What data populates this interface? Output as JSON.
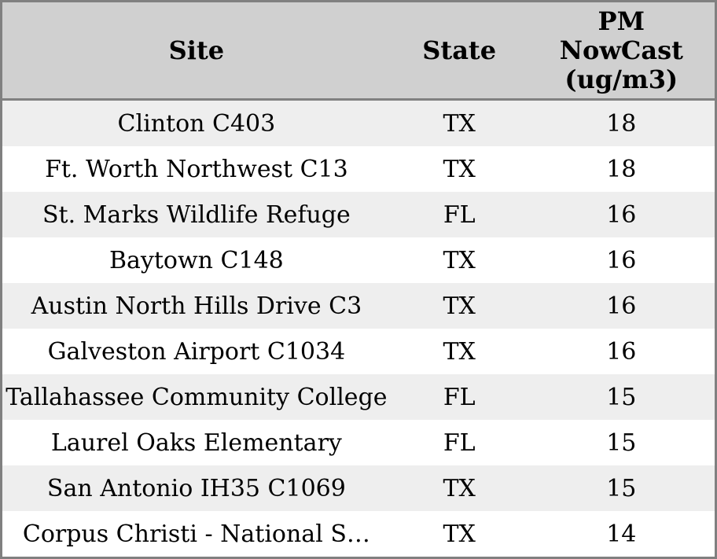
{
  "chart_data": {
    "type": "table",
    "columns": [
      "Site",
      "State",
      "PM NowCast (ug/m3)"
    ],
    "rows": [
      [
        "Clinton C403",
        "TX",
        18
      ],
      [
        "Ft. Worth Northwest C13",
        "TX",
        18
      ],
      [
        "St. Marks Wildlife Refuge",
        "FL",
        16
      ],
      [
        "Baytown C148",
        "TX",
        16
      ],
      [
        "Austin North Hills Drive C3",
        "TX",
        16
      ],
      [
        "Galveston Airport C1034",
        "TX",
        16
      ],
      [
        "Tallahassee Community College",
        "FL",
        15
      ],
      [
        "Laurel Oaks Elementary",
        "FL",
        15
      ],
      [
        "San Antonio IH35 C1069",
        "TX",
        15
      ],
      [
        "Corpus Christi - National S…",
        "TX",
        14
      ]
    ],
    "layout": {
      "grid": "off",
      "row_striping": "alternating",
      "alignment": "center"
    }
  },
  "header_display": {
    "site": "Site",
    "state": "State",
    "pm_lines": [
      "PM",
      "NowCast",
      "(ug/m3)"
    ]
  },
  "colors": {
    "border": "#808080",
    "header_bg": "#d0d0d0",
    "row_alt_bg": "#eeeeee",
    "row_bg": "#ffffff",
    "text": "#000000"
  }
}
